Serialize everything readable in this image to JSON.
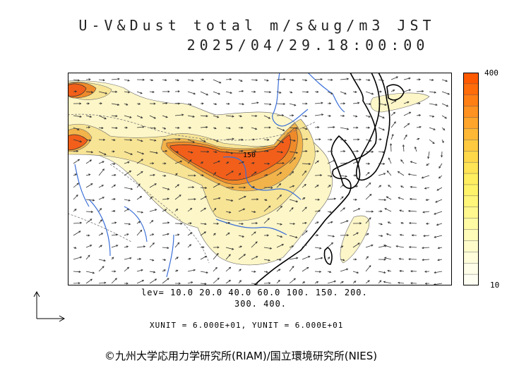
{
  "title": {
    "line1": "U-V&Dust total m/s&ug/m3 JST",
    "line2": "2025/04/29.18:00:00"
  },
  "map": {
    "contour_label": "150",
    "colors": {
      "ocean": "#ffffff",
      "dust_low": "#fdf6c8",
      "dust_mid": "#f7e495",
      "dust_high": "#f1b34a",
      "dust_very_high": "#ef8a2a",
      "dust_peak": "#f25f1a",
      "coast": "#000000",
      "river": "#3a6fd8",
      "border": "#777777"
    }
  },
  "colorbar": {
    "max_label": "400",
    "min_label": "10",
    "colors": [
      "#ff5a00",
      "#ff6c0a",
      "#ff7f14",
      "#ff9220",
      "#ffa52b",
      "#ffb836",
      "#ffca40",
      "#ffd84a",
      "#ffe455",
      "#ffee5f",
      "#fff36a",
      "#fff67a",
      "#fff88f",
      "#fffaa4",
      "#fffbb9",
      "#fffcca",
      "#fffdda",
      "#fffee8",
      "#fffef3"
    ]
  },
  "levels": {
    "line1": "lev= 10.0 20.0 40.0 60.0 100. 150. 200.",
    "line2": "300. 400."
  },
  "units": "XUNIT = 6.000E+01, YUNIT = 6.000E+01",
  "credit": "©九州大学応用力学研究所(RIAM)/国立環境研究所(NIES)"
}
